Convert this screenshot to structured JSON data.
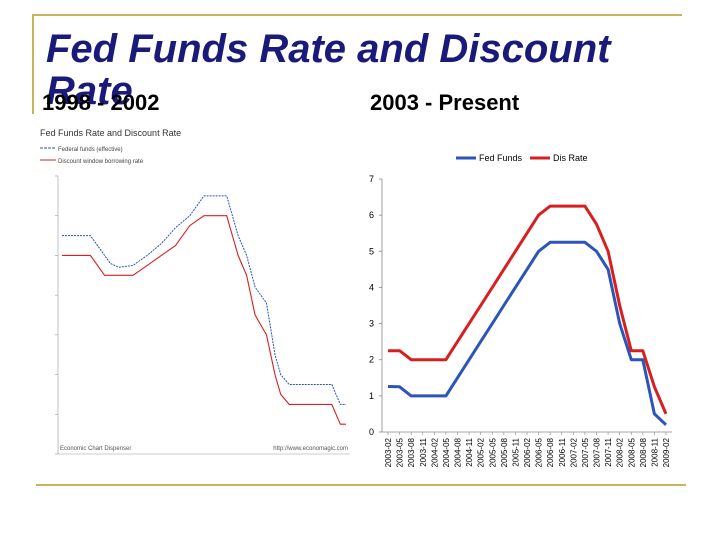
{
  "slide": {
    "title": "Fed Funds Rate and Discount Rate",
    "left_subtitle": "1998 - 2002",
    "right_subtitle": "2003 - Present"
  },
  "colors": {
    "fed_funds": "#2b55b8",
    "discount": "#d62020",
    "title": "#1a1a7a",
    "accent": "#c9b45a"
  },
  "chart_data": [
    {
      "type": "line",
      "title": "Fed Funds Rate and Discount Rate",
      "legend": [
        "Federal funds (effective)",
        "Discount window borrowing rate"
      ],
      "source_left": "Economic Chart Dispenser",
      "source_right": "http://www.economagic.com",
      "ylim": [
        0,
        7
      ],
      "grid": false,
      "legend_position": "top-left",
      "x": [
        1998.0,
        1998.25,
        1998.5,
        1998.75,
        1998.85,
        1999.0,
        1999.25,
        1999.5,
        1999.75,
        2000.0,
        2000.25,
        2000.5,
        2000.75,
        2000.9,
        2001.0,
        2001.1,
        2001.25,
        2001.4,
        2001.6,
        2001.75,
        2001.85,
        2002.0,
        2002.25,
        2002.5,
        2002.75,
        2002.9,
        2003.0
      ],
      "series": [
        {
          "name": "Federal funds (effective)",
          "values": [
            5.5,
            5.5,
            5.5,
            5.0,
            4.8,
            4.7,
            4.75,
            5.0,
            5.3,
            5.7,
            6.0,
            6.5,
            6.5,
            6.5,
            6.0,
            5.5,
            5.0,
            4.2,
            3.8,
            2.5,
            2.0,
            1.75,
            1.75,
            1.75,
            1.75,
            1.25,
            1.25
          ]
        },
        {
          "name": "Discount window borrowing rate",
          "values": [
            5.0,
            5.0,
            5.0,
            4.5,
            4.5,
            4.5,
            4.5,
            4.75,
            5.0,
            5.25,
            5.75,
            6.0,
            6.0,
            6.0,
            5.5,
            5.0,
            4.5,
            3.5,
            3.0,
            2.0,
            1.5,
            1.25,
            1.25,
            1.25,
            1.25,
            0.75,
            0.75
          ]
        }
      ]
    },
    {
      "type": "line",
      "legend_position": "top",
      "ylim": [
        0,
        7
      ],
      "yticks": [
        0,
        1,
        2,
        3,
        4,
        5,
        6,
        7
      ],
      "grid": false,
      "categories": [
        "2003-02",
        "2003-05",
        "2003-08",
        "2003-11",
        "2004-02",
        "2004-05",
        "2004-08",
        "2004-11",
        "2005-02",
        "2005-05",
        "2005-08",
        "2005-11",
        "2006-02",
        "2006-05",
        "2006-08",
        "2006-11",
        "2007-02",
        "2007-05",
        "2007-08",
        "2007-11",
        "2008-02",
        "2008-05",
        "2008-08",
        "2008-11",
        "2009-02"
      ],
      "series": [
        {
          "name": "Fed Funds",
          "values": [
            1.26,
            1.25,
            1.0,
            1.0,
            1.0,
            1.0,
            1.5,
            2.0,
            2.5,
            3.0,
            3.5,
            4.0,
            4.5,
            5.0,
            5.25,
            5.25,
            5.25,
            5.25,
            5.0,
            4.5,
            3.0,
            2.0,
            2.0,
            0.5,
            0.2
          ]
        },
        {
          "name": "Dis Rate",
          "values": [
            2.25,
            2.25,
            2.0,
            2.0,
            2.0,
            2.0,
            2.5,
            3.0,
            3.5,
            4.0,
            4.5,
            5.0,
            5.5,
            6.0,
            6.25,
            6.25,
            6.25,
            6.25,
            5.75,
            5.0,
            3.5,
            2.25,
            2.25,
            1.25,
            0.5
          ]
        }
      ]
    }
  ]
}
